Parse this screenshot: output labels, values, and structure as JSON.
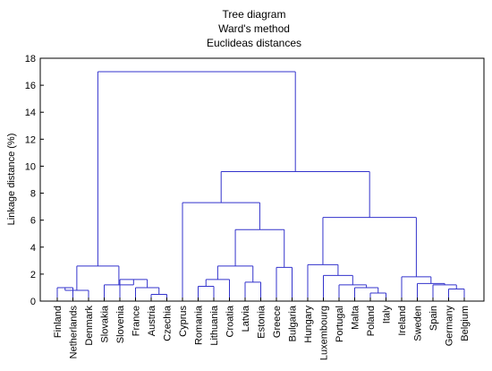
{
  "chart_data": {
    "type": "dendrogram",
    "title_lines": [
      "Tree diagram",
      "Ward's method",
      "Euclideas distances"
    ],
    "ylabel": "Linkage distance (%)",
    "xlabel": "",
    "ylim": [
      0,
      18
    ],
    "yticks": [
      0,
      2,
      4,
      6,
      8,
      10,
      12,
      14,
      16,
      18
    ],
    "grid": false,
    "line_color": "#3333cc",
    "leaves": [
      "Finland",
      "Netherlands",
      "Denmark",
      "Slovakia",
      "Slovenia",
      "France",
      "Austria",
      "Czechia",
      "Cyprus",
      "Romania",
      "Lithuania",
      "Croatia",
      "Latvia",
      "Estonia",
      "Greece",
      "Bulgaria",
      "Hungary",
      "Luxembourg",
      "Portugal",
      "Malta",
      "Poland",
      "Italy",
      "Ireland",
      "Sweden",
      "Spain",
      "Germany",
      "Belgium"
    ],
    "merges": [
      {
        "id": "c1",
        "left": "Finland",
        "right": "Netherlands",
        "height": 1.0
      },
      {
        "id": "c2",
        "left": "c1",
        "right": "Denmark",
        "height": 0.8
      },
      {
        "id": "c3",
        "left": "Austria",
        "right": "Czechia",
        "height": 0.5
      },
      {
        "id": "c4",
        "left": "France",
        "right": "c3",
        "height": 1.0
      },
      {
        "id": "c5",
        "left": "Slovenia",
        "right": "c4",
        "height": 1.6
      },
      {
        "id": "c6",
        "left": "Slovakia",
        "right": "c5",
        "height": 1.2
      },
      {
        "id": "c7",
        "left": "c2",
        "right": "c6",
        "height": 2.6
      },
      {
        "id": "c8",
        "left": "Romania",
        "right": "Lithuania",
        "height": 1.1
      },
      {
        "id": "c9",
        "left": "c8",
        "right": "Croatia",
        "height": 1.6
      },
      {
        "id": "c10",
        "left": "Latvia",
        "right": "Estonia",
        "height": 1.4
      },
      {
        "id": "c11",
        "left": "c9",
        "right": "c10",
        "height": 2.6
      },
      {
        "id": "c12",
        "left": "Greece",
        "right": "Bulgaria",
        "height": 2.5
      },
      {
        "id": "c13",
        "left": "c11",
        "right": "c12",
        "height": 5.3
      },
      {
        "id": "c14",
        "left": "Cyprus",
        "right": "c13",
        "height": 7.3
      },
      {
        "id": "c15",
        "left": "Poland",
        "right": "Italy",
        "height": 0.6
      },
      {
        "id": "c16",
        "left": "Malta",
        "right": "c15",
        "height": 1.0
      },
      {
        "id": "c17",
        "left": "Portugal",
        "right": "c16",
        "height": 1.2
      },
      {
        "id": "c18",
        "left": "Luxembourg",
        "right": "c17",
        "height": 1.9
      },
      {
        "id": "c19",
        "left": "Hungary",
        "right": "c18",
        "height": 2.7
      },
      {
        "id": "c20",
        "left": "Germany",
        "right": "Belgium",
        "height": 0.9
      },
      {
        "id": "c21",
        "left": "Spain",
        "right": "c20",
        "height": 1.2
      },
      {
        "id": "c22",
        "left": "Sweden",
        "right": "c21",
        "height": 1.3
      },
      {
        "id": "c23",
        "left": "Ireland",
        "right": "c22",
        "height": 1.8
      },
      {
        "id": "c24",
        "left": "c19",
        "right": "c23",
        "height": 6.2
      },
      {
        "id": "c25",
        "left": "c14",
        "right": "c24",
        "height": 9.6
      },
      {
        "id": "c26",
        "left": "c7",
        "right": "c25",
        "height": 17.0
      }
    ]
  }
}
